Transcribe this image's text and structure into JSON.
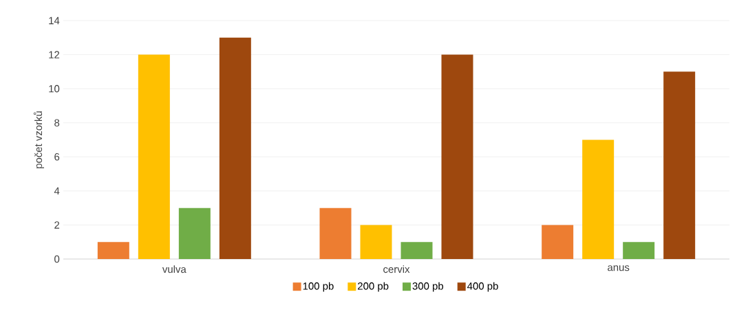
{
  "chart_data": {
    "type": "bar",
    "ylabel": "počet vzorků",
    "categories": [
      "vulva",
      "cervix",
      "anus"
    ],
    "series": [
      {
        "name": "100 pb",
        "color": "#ed7d31",
        "values": [
          1,
          3,
          2
        ]
      },
      {
        "name": "200 pb",
        "color": "#ffc000",
        "values": [
          12,
          2,
          7
        ]
      },
      {
        "name": "300 pb",
        "color": "#70ad47",
        "values": [
          3,
          1,
          1
        ]
      },
      {
        "name": "400 pb",
        "color": "#9e480e",
        "values": [
          13,
          12,
          11
        ]
      }
    ],
    "ylim": [
      0,
      14
    ],
    "yticks": [
      0,
      2,
      4,
      6,
      8,
      10,
      12,
      14
    ],
    "grid": "y",
    "legend": "bottom"
  }
}
